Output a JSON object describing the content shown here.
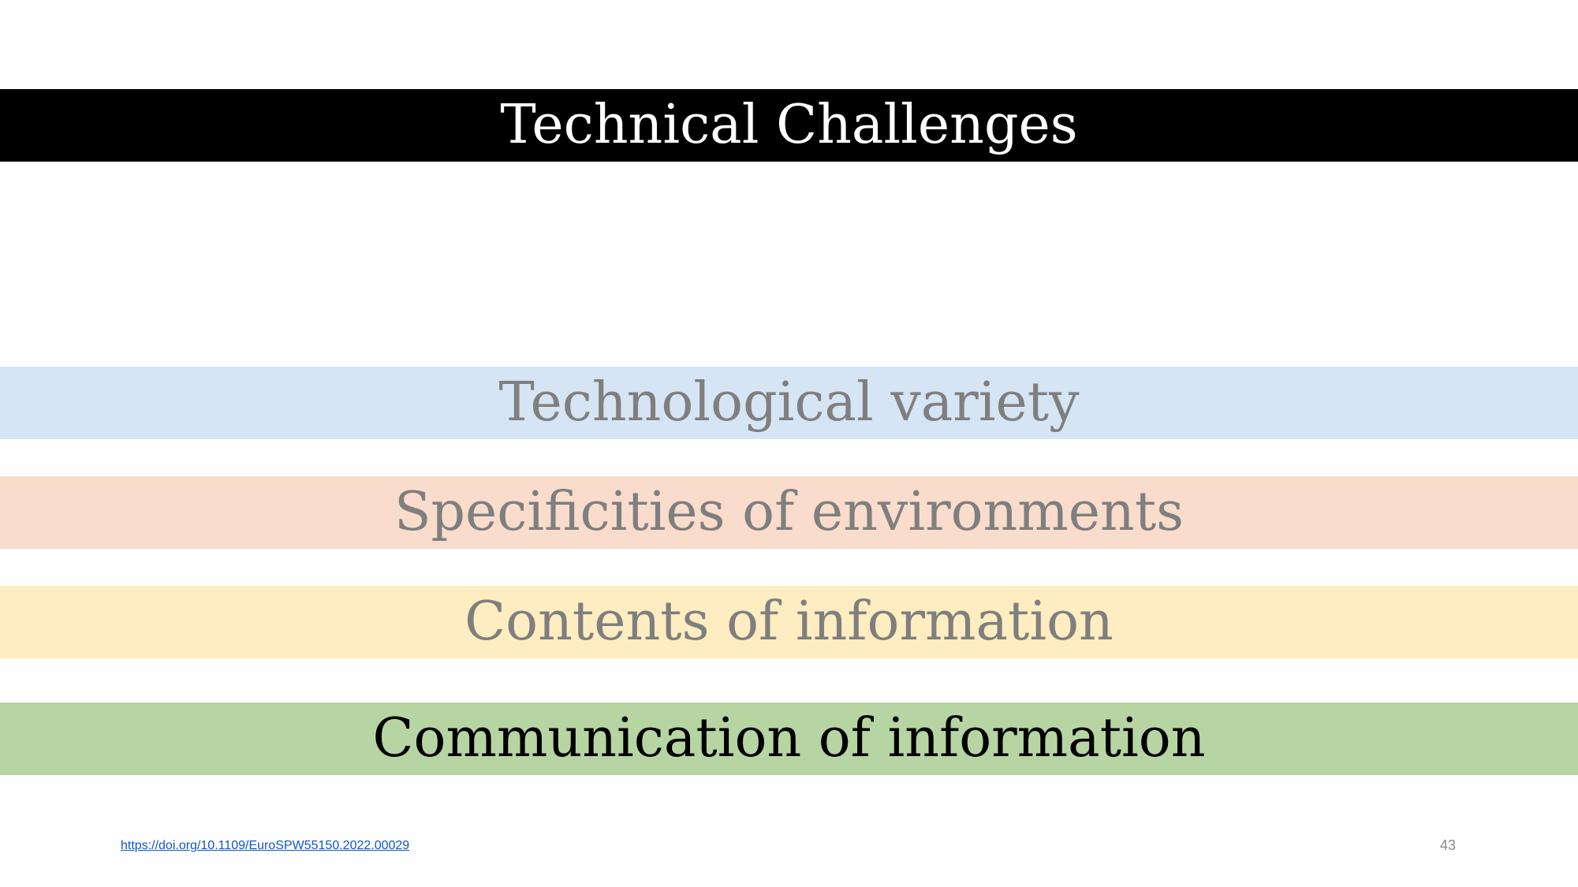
{
  "slide": {
    "title": "Technical Challenges",
    "items": [
      {
        "label": "Technological variety"
      },
      {
        "label": "Specificities of environments"
      },
      {
        "label": "Contents of information"
      },
      {
        "label": "Communication of information"
      }
    ],
    "reference_link": "https://doi.org/10.1109/EuroSPW55150.2022.00029",
    "page_number": "43"
  }
}
